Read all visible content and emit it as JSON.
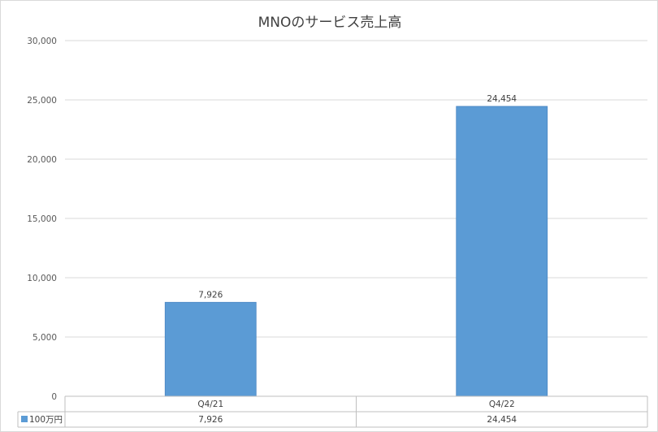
{
  "chart_data": {
    "type": "bar",
    "title": "MNOのサービス売上高",
    "categories": [
      "Q4/21",
      "Q4/22"
    ],
    "series": [
      {
        "name": "100万円",
        "values": [
          7926,
          24454
        ],
        "value_labels": [
          "7,926",
          "24,454"
        ],
        "color": "#5b9bd5"
      }
    ],
    "ylim": [
      0,
      30000
    ],
    "yticks": [
      0,
      5000,
      10000,
      15000,
      20000,
      25000,
      30000
    ],
    "ytick_labels": [
      "0",
      "5,000",
      "10,000",
      "15,000",
      "20,000",
      "25,000",
      "30,000"
    ],
    "grid": true,
    "data_table": true
  }
}
